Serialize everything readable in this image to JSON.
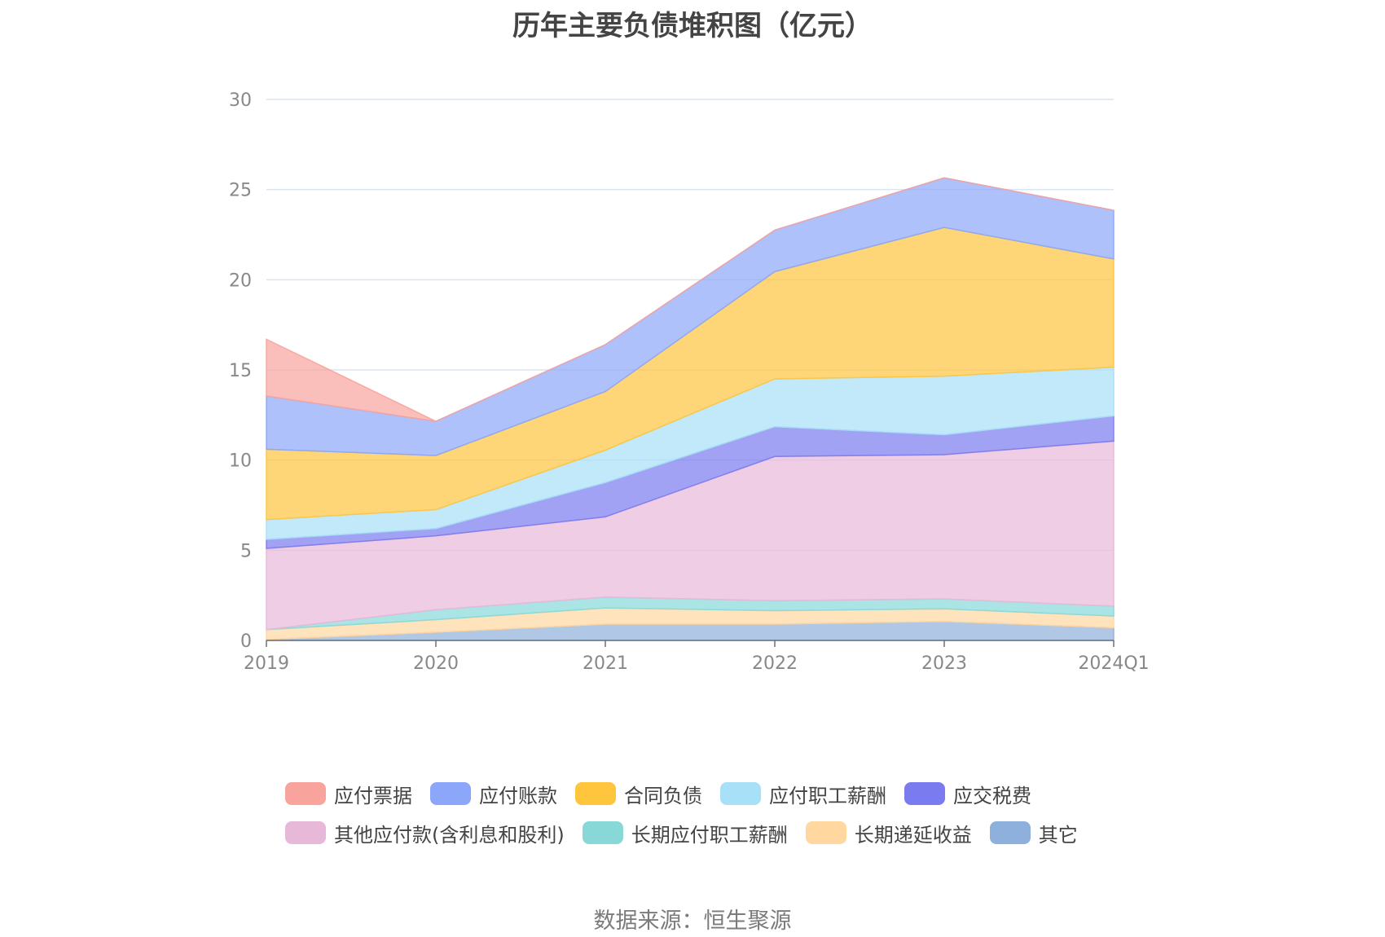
{
  "chart_data": {
    "type": "area",
    "stacked": true,
    "title": "历年主要负债堆积图（亿元）",
    "categories": [
      "2019",
      "2020",
      "2021",
      "2022",
      "2023",
      "2024Q1"
    ],
    "yticks": [
      "0",
      "5",
      "10",
      "15",
      "20",
      "25",
      "30"
    ],
    "ylim": [
      0,
      30
    ],
    "grid": true,
    "legend_position": "bottom",
    "series": [
      {
        "name": "其它",
        "color": "#8EB0DC",
        "values": [
          0.05,
          0.45,
          0.9,
          0.9,
          1.05,
          0.7
        ]
      },
      {
        "name": "长期递延收益",
        "color": "#FFD79F",
        "values": [
          0.55,
          0.7,
          0.9,
          0.75,
          0.7,
          0.65
        ]
      },
      {
        "name": "长期应付职工薪酬",
        "color": "#88D8D8",
        "values": [
          0.0,
          0.55,
          0.6,
          0.55,
          0.55,
          0.55
        ]
      },
      {
        "name": "其他应付款(含利息和股利)",
        "color": "#E8B8D8",
        "values": [
          4.5,
          4.1,
          4.45,
          8.0,
          8.0,
          9.15
        ]
      },
      {
        "name": "应交税费",
        "color": "#7B7BF0",
        "values": [
          0.5,
          0.4,
          1.9,
          1.65,
          1.1,
          1.4
        ]
      },
      {
        "name": "应付职工薪酬",
        "color": "#A8E0F8",
        "values": [
          1.1,
          1.05,
          1.8,
          2.65,
          3.25,
          2.7
        ]
      },
      {
        "name": "合同负债",
        "color": "#FFC53D",
        "values": [
          3.9,
          3.0,
          3.25,
          5.95,
          8.25,
          6.0
        ]
      },
      {
        "name": "应付账款",
        "color": "#8CA6FA",
        "values": [
          2.95,
          1.9,
          2.6,
          2.3,
          2.75,
          2.7
        ]
      },
      {
        "name": "应付票据",
        "color": "#F8A49C",
        "values": [
          3.15,
          0.0,
          0.0,
          0.0,
          0.0,
          0.0
        ]
      }
    ]
  },
  "legend_rows": [
    [
      {
        "name": "应付票据",
        "color": "#F8A49C"
      },
      {
        "name": "应付账款",
        "color": "#8CA6FA"
      },
      {
        "name": "合同负债",
        "color": "#FFC53D"
      },
      {
        "name": "应付职工薪酬",
        "color": "#A8E0F8"
      },
      {
        "name": "应交税费",
        "color": "#7B7BF0"
      }
    ],
    [
      {
        "name": "其他应付款(含利息和股利)",
        "color": "#E8B8D8"
      },
      {
        "name": "长期应付职工薪酬",
        "color": "#88D8D8"
      },
      {
        "name": "长期递延收益",
        "color": "#FFD79F"
      },
      {
        "name": "其它",
        "color": "#8EB0DC"
      }
    ]
  ],
  "source": "数据来源：恒生聚源"
}
